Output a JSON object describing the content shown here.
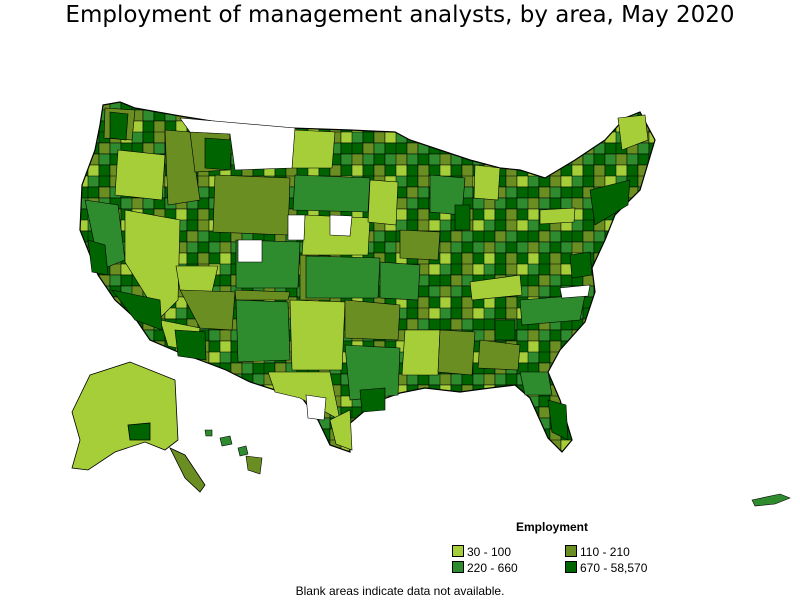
{
  "title": "Employment of management analysts, by area, May 2020",
  "legend": {
    "title": "Employment",
    "items": [
      {
        "label": "30 - 100",
        "color": "#a6ce39"
      },
      {
        "label": "110 - 210",
        "color": "#6b8e23"
      },
      {
        "label": "220 - 660",
        "color": "#2e8b2e"
      },
      {
        "label": "670 - 58,570",
        "color": "#006400"
      }
    ]
  },
  "footnote": "Blank areas indicate data not available.",
  "colors": {
    "border": "#000000",
    "blank": "#ffffff"
  }
}
